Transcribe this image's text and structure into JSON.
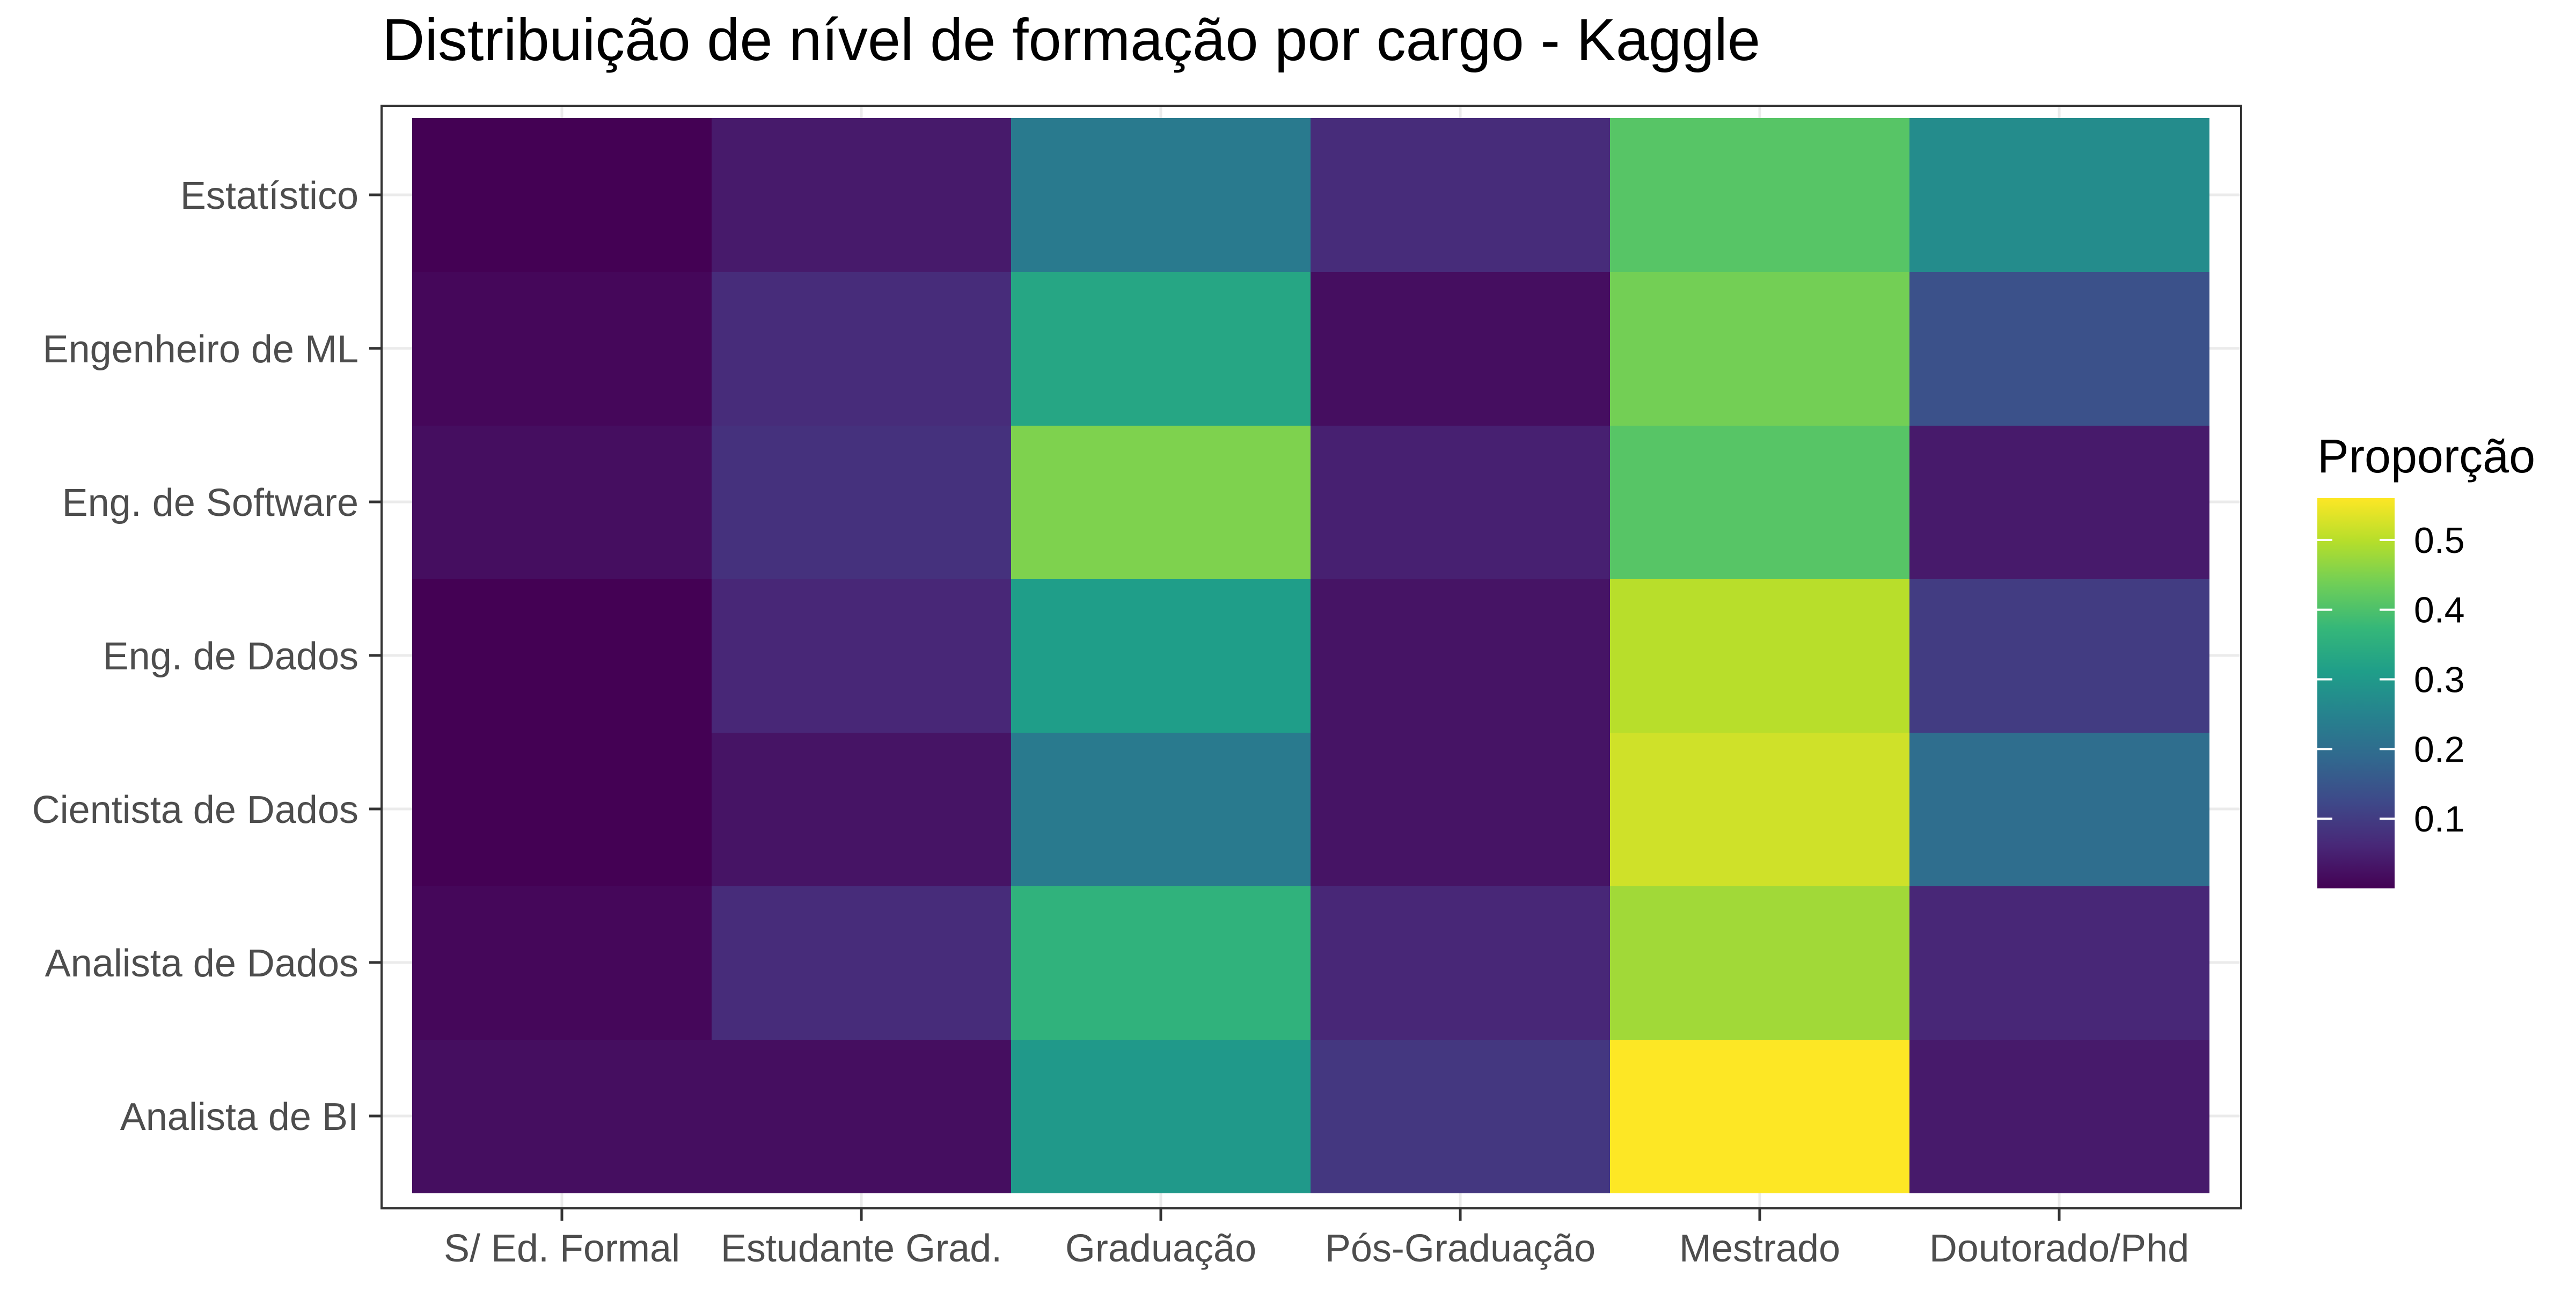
{
  "chart_data": {
    "type": "heatmap",
    "title": "Distribuição de nível de formação por cargo - Kaggle",
    "xlabel": "",
    "ylabel": "",
    "x_categories": [
      "S/ Ed. Formal",
      "Estudante Grad.",
      "Graduação",
      "Pós-Graduação",
      "Mestrado",
      "Doutorado/Phd"
    ],
    "y_categories": [
      "Analista de BI",
      "Analista de Dados",
      "Cientista de Dados",
      "Eng. de Dados",
      "Eng. de Software",
      "Engenheiro de ML",
      "Estatístico"
    ],
    "values": [
      [
        0.02,
        0.02,
        0.3,
        0.09,
        0.56,
        0.04
      ],
      [
        0.01,
        0.07,
        0.36,
        0.06,
        0.48,
        0.06
      ],
      [
        0.0,
        0.03,
        0.23,
        0.03,
        0.52,
        0.2
      ],
      [
        0.0,
        0.06,
        0.31,
        0.03,
        0.5,
        0.1
      ],
      [
        0.02,
        0.08,
        0.45,
        0.05,
        0.41,
        0.04
      ],
      [
        0.01,
        0.07,
        0.33,
        0.02,
        0.44,
        0.14
      ],
      [
        0.0,
        0.04,
        0.23,
        0.07,
        0.41,
        0.27
      ]
    ],
    "color_scale": "viridis",
    "color_range": [
      0,
      0.56
    ],
    "legend": {
      "title": "Proporção",
      "ticks": [
        0.1,
        0.2,
        0.3,
        0.4,
        0.5
      ],
      "tick_labels": [
        "0.1",
        "0.2",
        "0.3",
        "0.4",
        "0.5"
      ],
      "placement": "right"
    },
    "grid": true,
    "theme_colors": {
      "panel_border": "#333333",
      "axis_text": "#4d4d4d",
      "gridline": "#ebebeb"
    }
  }
}
